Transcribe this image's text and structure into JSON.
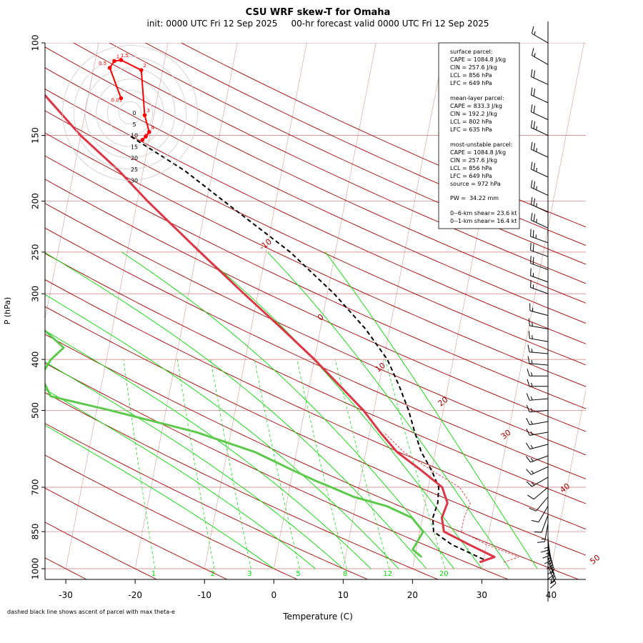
{
  "title": "CSU WRF skew-T for Omaha",
  "subtitle": "init: 0000 UTC Fri 12 Sep 2025     00-hr forecast valid 0000 UTC Fri 12 Sep 2025",
  "footnote": "dashed black line shows ascent of parcel with max theta-e",
  "colors": {
    "temperature": "#dc3545",
    "dewpoint": "#5cc94a",
    "parcel": "#000000",
    "virtual_temp": "#dc3545",
    "isotherm": "#a80000",
    "dry_adiabat": "#a80000",
    "moist_adiabat": "#00dd00",
    "mixing_ratio": "#00dd00",
    "isobar": "#c87878",
    "hodograph": "#ff0000"
  },
  "stats": {
    "surface_header": "surface parcel:",
    "surface_cape": "CAPE = 1084.8 J/kg",
    "surface_cin": "CIN = 257.6 J/kg",
    "surface_lcl": "LCL = 856 hPa",
    "surface_lfc": "LFC = 649 hPa",
    "ml_header": "mean-layer parcel:",
    "ml_cape": "CAPE = 833.3 J/kg",
    "ml_cin": "CIN = 192.2 J/kg",
    "ml_lcl": "LCL = 802 hPa",
    "ml_lfc": "LFC = 635 hPa",
    "mu_header": "most-unstable parcel:",
    "mu_cape": "CAPE = 1084.8 J/kg",
    "mu_cin": "CIN = 257.6 J/kg",
    "mu_lcl": "LCL = 856 hPa",
    "mu_lfc": "LFC = 649 hPa",
    "mu_source": "source = 972 hPa",
    "pw": "PW =  34.22 mm",
    "shear6": "0--6-km shear= 23.6 kt",
    "shear1": "0--1-km shear= 16.4 kt"
  },
  "chart_data": {
    "type": "skew-T",
    "xlabel": "Temperature (C)",
    "ylabel": "P (hPa)",
    "xlim": [
      -33,
      45
    ],
    "ylim": [
      1000,
      100
    ],
    "x_ticks": [
      "-30",
      "-20",
      "-10",
      "0",
      "10",
      "20",
      "30",
      "40"
    ],
    "y_ticks": [
      "1000",
      "850",
      "700",
      "500",
      "400",
      "300",
      "250",
      "200",
      "150",
      "100"
    ],
    "temperature_profile": [
      [
        972,
        29.5
      ],
      [
        950,
        31.5
      ],
      [
        900,
        27.5
      ],
      [
        850,
        23.5
      ],
      [
        800,
        22.8
      ],
      [
        750,
        23.2
      ],
      [
        700,
        22.0
      ],
      [
        650,
        18.5
      ],
      [
        600,
        14.5
      ],
      [
        550,
        11.5
      ],
      [
        500,
        8.5
      ],
      [
        450,
        4.5
      ],
      [
        400,
        0.0
      ],
      [
        350,
        -5.5
      ],
      [
        300,
        -12.0
      ],
      [
        250,
        -19.5
      ],
      [
        200,
        -28.5
      ],
      [
        175,
        -33.5
      ],
      [
        150,
        -40.0
      ],
      [
        125,
        -46.5
      ],
      [
        110,
        -52.0
      ]
    ],
    "dewpoint_profile": [
      [
        950,
        21.0
      ],
      [
        920,
        19.5
      ],
      [
        850,
        20.5
      ],
      [
        800,
        18.5
      ],
      [
        760,
        14.5
      ],
      [
        730,
        9.5
      ],
      [
        700,
        6.0
      ],
      [
        680,
        3.5
      ],
      [
        650,
        0.0
      ],
      [
        600,
        -6.0
      ],
      [
        550,
        -15.0
      ],
      [
        500,
        -28.0
      ],
      [
        470,
        -37.0
      ],
      [
        430,
        -39.0
      ],
      [
        400,
        -38.0
      ],
      [
        380,
        -36.5
      ],
      [
        350,
        -40.0
      ],
      [
        300,
        -47.0
      ],
      [
        250,
        -54.0
      ],
      [
        200,
        -62.0
      ],
      [
        180,
        -65.0
      ]
    ],
    "virtual_temp_profile": [
      [
        972,
        33.0
      ],
      [
        950,
        35.0
      ],
      [
        900,
        30.0
      ],
      [
        850,
        26.0
      ],
      [
        800,
        26.0
      ],
      [
        750,
        26.5
      ],
      [
        700,
        24.5
      ],
      [
        650,
        20.0
      ],
      [
        600,
        15.5
      ],
      [
        550,
        12.0
      ]
    ],
    "parcel_profile": [
      [
        960,
        30.0
      ],
      [
        900,
        25.0
      ],
      [
        850,
        22.0
      ],
      [
        800,
        21.5
      ],
      [
        750,
        21.8
      ],
      [
        700,
        21.5
      ],
      [
        650,
        20.0
      ],
      [
        600,
        18.0
      ],
      [
        550,
        16.5
      ],
      [
        500,
        15.0
      ],
      [
        450,
        13.0
      ],
      [
        400,
        10.5
      ],
      [
        350,
        6.5
      ],
      [
        300,
        1.0
      ],
      [
        250,
        -6.5
      ],
      [
        200,
        -17.5
      ],
      [
        175,
        -24.0
      ],
      [
        150,
        -33.0
      ]
    ],
    "isotherm_labels": [
      "-10",
      "0",
      "10",
      "20",
      "30",
      "40",
      "50"
    ],
    "mixing_ratio_labels": [
      "1",
      "2",
      "3",
      "5",
      "8",
      "12",
      "20"
    ],
    "hodograph": {
      "rings": [
        "5",
        "10",
        "15",
        "20",
        "25",
        "30"
      ],
      "points": [
        {
          "label": "0.01",
          "u": -4.0,
          "v": 6.5
        },
        {
          "label": "0.5",
          "u": -9.0,
          "v": 20.0
        },
        {
          "label": "1",
          "u": -7.0,
          "v": 23.0
        },
        {
          "label": "1.5",
          "u": -4.0,
          "v": 23.5
        },
        {
          "label": "2",
          "u": 5.0,
          "v": 19.0
        },
        {
          "label": "3",
          "u": 6.5,
          "v": -1.0
        },
        {
          "label": "4",
          "u": 8.5,
          "v": -8.5
        },
        {
          "label": "5",
          "u": 7.0,
          "v": -10.5
        },
        {
          "label": "6",
          "u": 5.5,
          "v": -12.0
        }
      ],
      "center_label": "0"
    },
    "wind_barbs": [
      {
        "p": 100,
        "dir": 300,
        "speed": 15
      },
      {
        "p": 110,
        "dir": 300,
        "speed": 15
      },
      {
        "p": 120,
        "dir": 295,
        "speed": 20
      },
      {
        "p": 130,
        "dir": 295,
        "speed": 20
      },
      {
        "p": 140,
        "dir": 295,
        "speed": 20
      },
      {
        "p": 150,
        "dir": 295,
        "speed": 25
      },
      {
        "p": 165,
        "dir": 295,
        "speed": 25
      },
      {
        "p": 180,
        "dir": 295,
        "speed": 25
      },
      {
        "p": 195,
        "dir": 295,
        "speed": 25
      },
      {
        "p": 210,
        "dir": 295,
        "speed": 25
      },
      {
        "p": 225,
        "dir": 295,
        "speed": 25
      },
      {
        "p": 240,
        "dir": 290,
        "speed": 25
      },
      {
        "p": 255,
        "dir": 290,
        "speed": 20
      },
      {
        "p": 270,
        "dir": 290,
        "speed": 20
      },
      {
        "p": 285,
        "dir": 290,
        "speed": 15
      },
      {
        "p": 300,
        "dir": 290,
        "speed": 15
      },
      {
        "p": 330,
        "dir": 285,
        "speed": 15
      },
      {
        "p": 350,
        "dir": 280,
        "speed": 15
      },
      {
        "p": 370,
        "dir": 280,
        "speed": 15
      },
      {
        "p": 390,
        "dir": 275,
        "speed": 15
      },
      {
        "p": 410,
        "dir": 275,
        "speed": 15
      },
      {
        "p": 430,
        "dir": 270,
        "speed": 15
      },
      {
        "p": 450,
        "dir": 270,
        "speed": 15
      },
      {
        "p": 475,
        "dir": 265,
        "speed": 15
      },
      {
        "p": 500,
        "dir": 265,
        "speed": 15
      },
      {
        "p": 525,
        "dir": 260,
        "speed": 15
      },
      {
        "p": 550,
        "dir": 260,
        "speed": 15
      },
      {
        "p": 580,
        "dir": 255,
        "speed": 15
      },
      {
        "p": 610,
        "dir": 250,
        "speed": 15
      },
      {
        "p": 640,
        "dir": 245,
        "speed": 15
      },
      {
        "p": 670,
        "dir": 240,
        "speed": 15
      },
      {
        "p": 700,
        "dir": 230,
        "speed": 10
      },
      {
        "p": 730,
        "dir": 220,
        "speed": 10
      },
      {
        "p": 760,
        "dir": 210,
        "speed": 10
      },
      {
        "p": 790,
        "dir": 200,
        "speed": 10
      },
      {
        "p": 820,
        "dir": 190,
        "speed": 15
      },
      {
        "p": 850,
        "dir": 180,
        "speed": 15
      },
      {
        "p": 870,
        "dir": 175,
        "speed": 15
      },
      {
        "p": 890,
        "dir": 170,
        "speed": 15
      },
      {
        "p": 910,
        "dir": 165,
        "speed": 15
      },
      {
        "p": 930,
        "dir": 160,
        "speed": 15
      },
      {
        "p": 950,
        "dir": 160,
        "speed": 15
      },
      {
        "p": 970,
        "dir": 155,
        "speed": 15
      },
      {
        "p": 990,
        "dir": 155,
        "speed": 15
      }
    ]
  }
}
